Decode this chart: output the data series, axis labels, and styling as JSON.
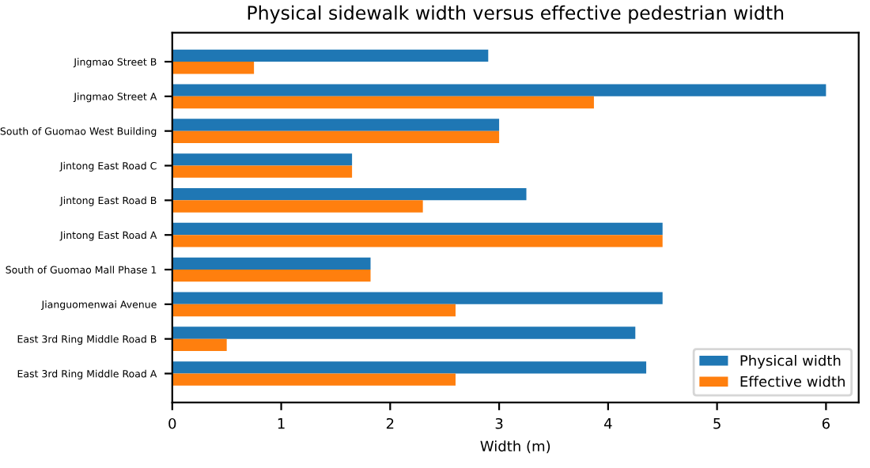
{
  "chart_data": {
    "type": "bar",
    "orientation": "horizontal",
    "title": "Physical sidewalk width versus effective pedestrian width",
    "xlabel": "Width (m)",
    "categories": [
      "Jingmao Street B",
      "Jingmao Street A",
      "South of Guomao West Building",
      "Jintong East Road C",
      "Jintong East Road B",
      "Jintong East Road A",
      "South of Guomao Mall Phase 1",
      "Jianguomenwai Avenue",
      "East 3rd Ring Middle Road B",
      "East 3rd Ring Middle Road A"
    ],
    "series": [
      {
        "name": "Physical width",
        "color": "#1f77b4",
        "values": [
          2.9,
          6.0,
          3.0,
          1.65,
          3.25,
          4.5,
          1.82,
          4.5,
          4.25,
          4.35
        ]
      },
      {
        "name": "Effective width",
        "color": "#ff7f0e",
        "values": [
          0.75,
          3.87,
          3.0,
          1.65,
          2.3,
          4.5,
          1.82,
          2.6,
          0.5,
          2.6
        ]
      }
    ],
    "xlim": [
      0,
      6.3
    ],
    "xticks": [
      0,
      1,
      2,
      3,
      4,
      5,
      6
    ],
    "legend": "bottom right",
    "grid": false
  }
}
